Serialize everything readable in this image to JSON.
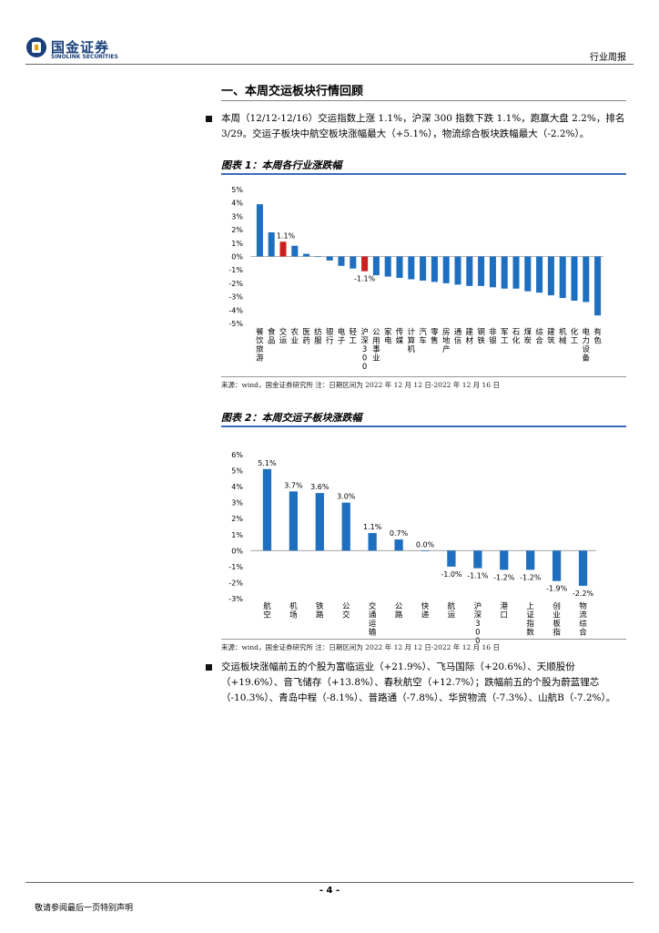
{
  "header": {
    "logo_cn": "国金证券",
    "logo_en": "SINOLINK SECURITIES",
    "report_type": "行业周报",
    "brand_color": "#1a3f7a"
  },
  "section": {
    "title": "一、本周交运板块行情回顾",
    "para1": "本周（12/12-12/16）交运指数上涨 1.1%，沪深 300 指数下跌 1.1%，跑赢大盘 2.2%，排名 3/29。交运子板块中航空板块涨幅最大（+5.1%），物流综合板块跌幅最大（-2.2%）。",
    "para2": "交运板块涨幅前五的个股为富临运业（+21.9%）、飞马国际（+20.6%）、天顺股份（+19.6%）、音飞储存（+13.8%）、春秋航空（+12.7%）；跌幅前五的个股为蔚蓝锂芯（-10.3%）、青岛中程（-8.1%）、普路通（-7.8%）、华贸物流（-7.3%）、山航B（-7.2%）。"
  },
  "figure1": {
    "title": "图表 1：本周各行业涨跌幅",
    "source": "来源：wind，国金证券研究所 注：日期区间为 2022 年 12 月 12 日-2022 年 12 月 16 日"
  },
  "figure2": {
    "title": "图表 2：本周交运子板块涨跌幅",
    "source": "来源：wind，国金证券研究所 注：日期区间为 2022 年 12 月 12 日-2022 年 12 月 16 日"
  },
  "chart_data": [
    {
      "type": "bar",
      "title": "图表 1：本周各行业涨跌幅",
      "categories": [
        "餐饮旅游",
        "食品",
        "交运",
        "农业",
        "医药",
        "纺服",
        "银行",
        "电子",
        "轻工",
        "沪深300",
        "公用事业",
        "家电",
        "传媒",
        "计算机",
        "汽车",
        "零售",
        "房地产",
        "通信",
        "建材",
        "钢铁",
        "非银",
        "军工",
        "石化",
        "煤炭",
        "综合",
        "建筑",
        "机械",
        "化工",
        "电力设备",
        "有色"
      ],
      "values": [
        3.9,
        1.8,
        1.1,
        0.8,
        0.2,
        0.0,
        -0.3,
        -0.7,
        -0.9,
        -1.1,
        -1.4,
        -1.5,
        -1.6,
        -1.7,
        -1.8,
        -1.9,
        -2.0,
        -2.1,
        -2.2,
        -2.2,
        -2.3,
        -2.4,
        -2.4,
        -2.6,
        -2.7,
        -2.9,
        -3.1,
        -3.3,
        -3.4,
        -4.4
      ],
      "labels": {
        "2": "1.1%",
        "9": "-1.1%"
      },
      "highlight": {
        "2": "#cc1f1f",
        "9": "#cc1f1f"
      },
      "bar_color": "#1f6fc0",
      "ylim": [
        -5,
        5
      ],
      "yticks": [
        "5%",
        "4%",
        "3%",
        "2%",
        "1%",
        "0%",
        "-1%",
        "-2%",
        "-3%",
        "-4%",
        "-5%"
      ],
      "grid": false
    },
    {
      "type": "bar",
      "title": "图表 2：本周交运子板块涨跌幅",
      "categories": [
        "航空",
        "机场",
        "铁路",
        "公交",
        "交通运输",
        "公路",
        "快递",
        "航运",
        "沪深300",
        "港口",
        "上证指数",
        "创业板指",
        "物流综合"
      ],
      "values": [
        5.1,
        3.7,
        3.6,
        3.0,
        1.1,
        0.7,
        0.0,
        -1.0,
        -1.1,
        -1.2,
        -1.2,
        -1.9,
        -2.2
      ],
      "value_labels": [
        "5.1%",
        "3.7%",
        "3.6%",
        "3.0%",
        "1.1%",
        "0.7%",
        "0.0%",
        "-1.0%",
        "-1.1%",
        "-1.2%",
        "-1.2%",
        "-1.9%",
        "-2.2%"
      ],
      "bar_color": "#1f6fc0",
      "ylim": [
        -3,
        6
      ],
      "yticks": [
        "6%",
        "5%",
        "4%",
        "3%",
        "2%",
        "1%",
        "0%",
        "-1%",
        "-2%",
        "-3%"
      ],
      "grid": false
    }
  ],
  "footer": {
    "page": "- 4 -",
    "disclaimer": "敬请参阅最后一页特别声明"
  }
}
